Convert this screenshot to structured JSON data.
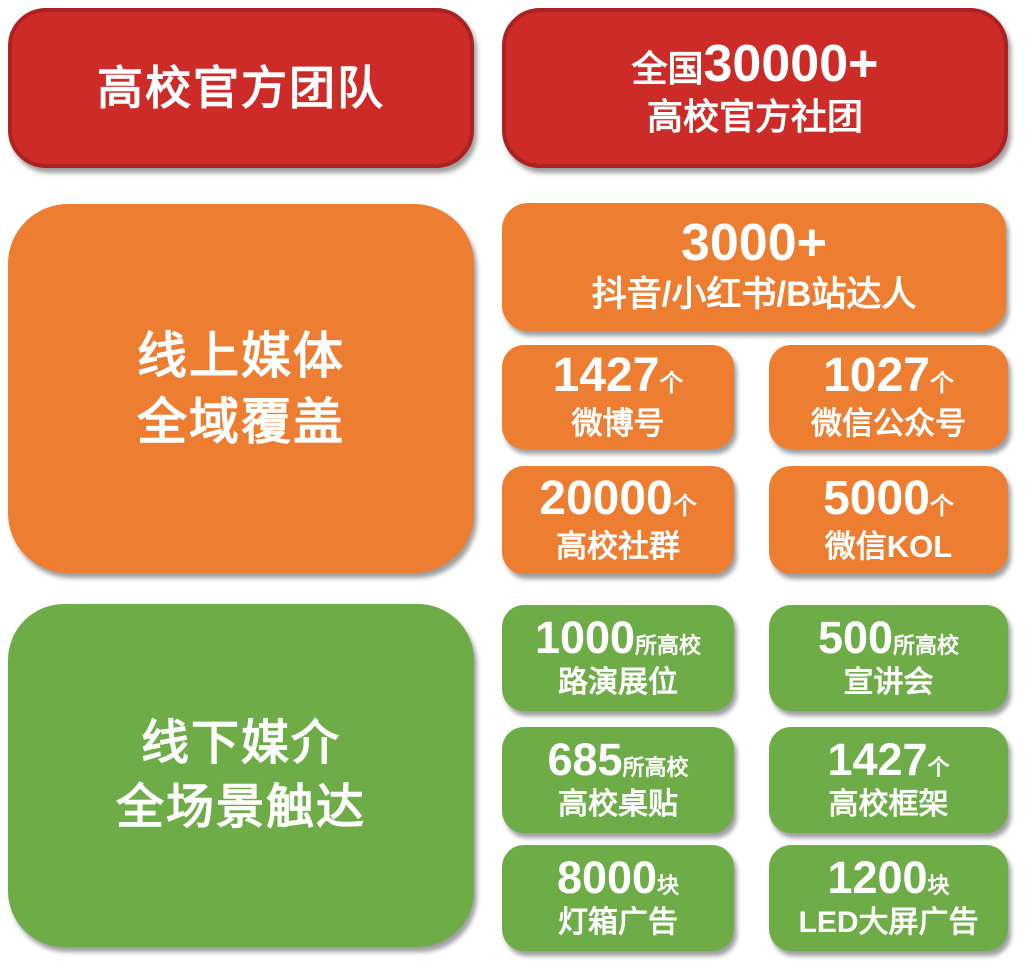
{
  "colors": {
    "red": "#cd2b28",
    "red_border": "#ab2220",
    "orange": "#ed7d31",
    "green": "#6eac48",
    "text": "#ffffff"
  },
  "header": {
    "left_title": "高校官方团队",
    "right": {
      "prefix": "全国",
      "number": "30000+",
      "label": "高校官方社团"
    }
  },
  "online": {
    "title_line1": "线上媒体",
    "title_line2": "全域覆盖",
    "featured": {
      "number": "3000+",
      "label": "抖音/小红书/B站达人"
    },
    "stats": [
      {
        "number": "1427",
        "unit": "个",
        "label": "微博号"
      },
      {
        "number": "1027",
        "unit": "个",
        "label": "微信公众号"
      },
      {
        "number": "20000",
        "unit": "个",
        "label": "高校社群"
      },
      {
        "number": "5000",
        "unit": "个",
        "label": "微信KOL"
      }
    ]
  },
  "offline": {
    "title_line1": "线下媒介",
    "title_line2": "全场景触达",
    "stats": [
      {
        "number": "1000",
        "unit": "所高校",
        "label": "路演展位"
      },
      {
        "number": "500",
        "unit": "所高校",
        "label": "宣讲会"
      },
      {
        "number": "685",
        "unit": "所高校",
        "label": "高校桌贴"
      },
      {
        "number": "1427",
        "unit": "个",
        "label": "高校框架"
      },
      {
        "number": "8000",
        "unit": "块",
        "label": "灯箱广告"
      },
      {
        "number": "1200",
        "unit": "块",
        "label": "LED大屏广告"
      }
    ]
  }
}
